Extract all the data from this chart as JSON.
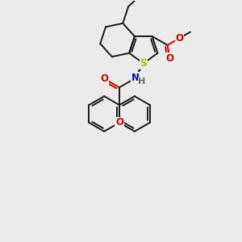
{
  "bg_color": "#ebebeb",
  "bond_color": "#1a1a1a",
  "bond_lw": 1.4,
  "S_color": "#b8b800",
  "N_color": "#0000cc",
  "O_color": "#cc0000",
  "fig_size": [
    3.0,
    3.0
  ],
  "dpi": 100,
  "xlim": [
    0,
    300
  ],
  "ylim": [
    0,
    300
  ]
}
